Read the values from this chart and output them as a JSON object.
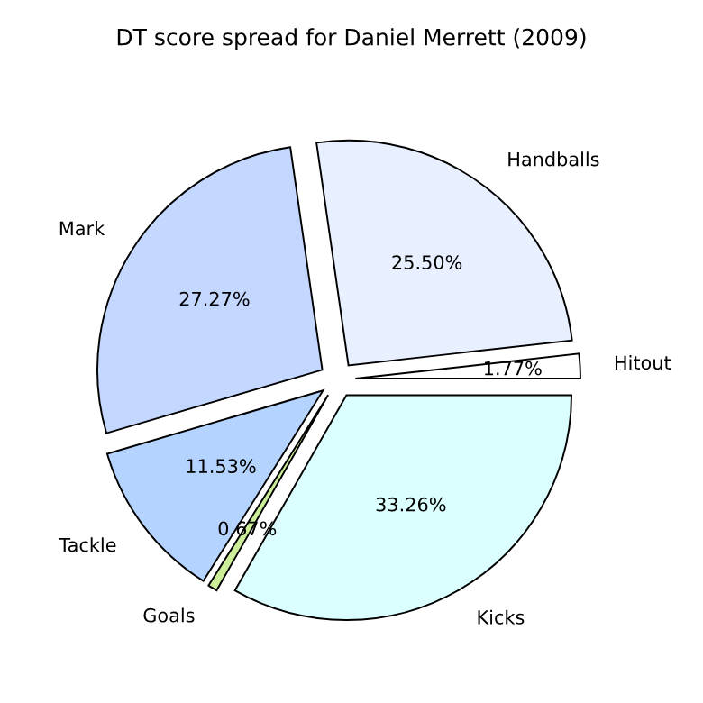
{
  "chart_data": {
    "type": "pie",
    "title": "DT score spread for Daniel Merrett (2009)",
    "categories": [
      "Hitout",
      "Handballs",
      "Mark",
      "Tackle",
      "Goals",
      "Kicks"
    ],
    "values": [
      1.77,
      25.5,
      27.27,
      11.53,
      0.67,
      33.26
    ],
    "value_labels": [
      "1.77%",
      "25.50%",
      "27.27%",
      "11.53%",
      "0.67%",
      "33.26%"
    ],
    "colors": [
      "#ffffff",
      "#e8efff",
      "#c4d7ff",
      "#b4d4ff",
      "#ccee99",
      "#dbffff"
    ]
  }
}
